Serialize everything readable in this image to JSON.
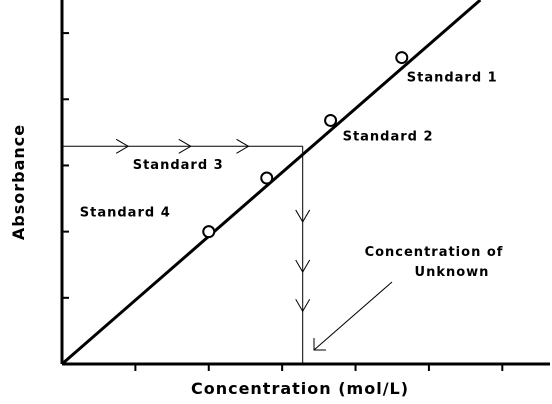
{
  "chart_data": {
    "type": "line",
    "xlabel": "Concentration (mol/L)",
    "ylabel": "Absorbance",
    "xlim": [
      0,
      6.65
    ],
    "ylim": [
      0,
      5.5
    ],
    "xticks": [
      1,
      2,
      3,
      4,
      5,
      6
    ],
    "yticks": [
      1,
      2,
      3,
      4,
      5
    ],
    "color": "#000000",
    "line": {
      "x": [
        0,
        5.7
      ],
      "y": [
        0,
        5.5
      ]
    },
    "points": {
      "labels": [
        "Standard 1",
        "Standard 2",
        "Standard 3",
        "Standard 4"
      ],
      "x": [
        4.63,
        3.66,
        2.79,
        2.0
      ],
      "y": [
        4.63,
        3.68,
        2.81,
        2.0
      ]
    },
    "unknown": {
      "x": 3.28,
      "y": 3.29,
      "annotation": [
        "Concentration of",
        "Unknown"
      ]
    }
  }
}
